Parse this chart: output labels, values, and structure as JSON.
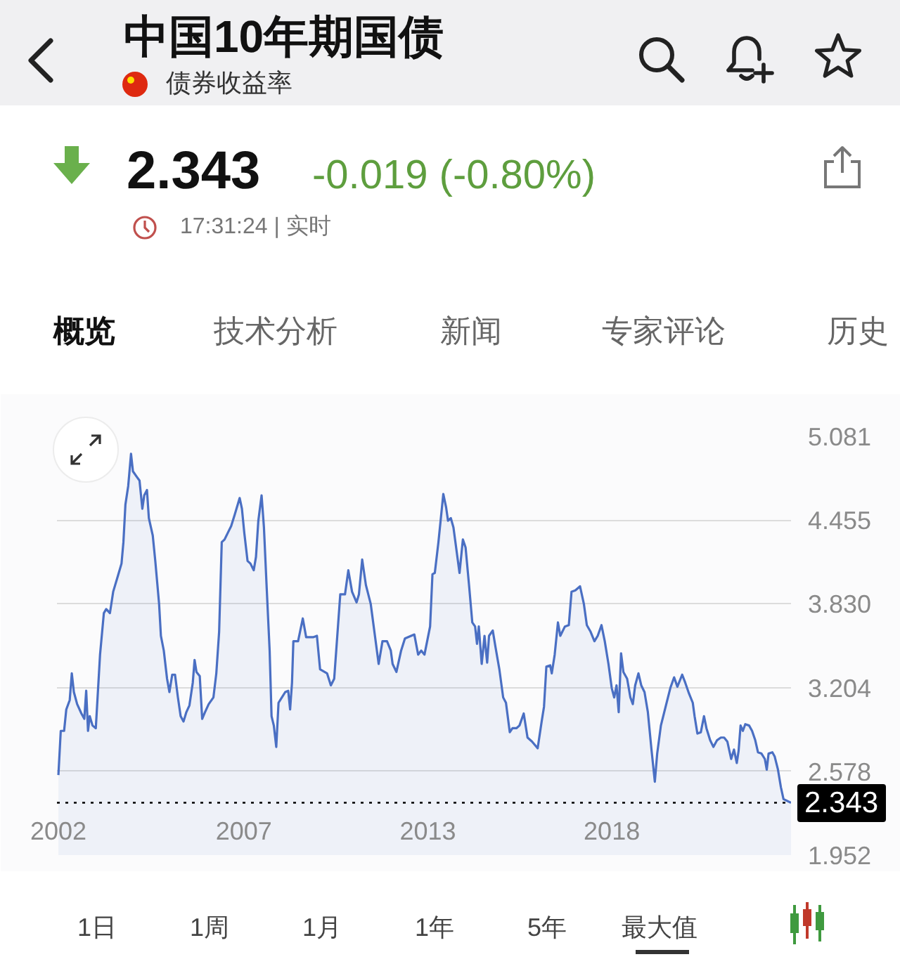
{
  "chart_data": {
    "type": "area",
    "title": "中国10年期国债",
    "subtitle": "债券收益率",
    "annotations": [
      "2.343",
      "-0.019 (-0.80%)",
      "17:31:24 | 实时",
      "概览",
      "技术分析",
      "新闻",
      "专家评论",
      "历史",
      "1日",
      "1周",
      "1月",
      "1年",
      "5年",
      "最大值"
    ],
    "x": [
      "2002-04-02",
      "2002-04-28",
      "2002-06-04",
      "2002-06-28",
      "2002-08-05",
      "2002-08-28",
      "2002-09-20",
      "2002-10-26",
      "2002-12-12",
      "2003-01-13",
      "2003-02-03",
      "2003-02-23",
      "2003-03-14",
      "2003-04-14",
      "2003-05-20",
      "2003-07-06",
      "2003-08-17",
      "2003-09-12",
      "2003-10-23",
      "2003-11-28",
      "2004-01-20",
      "2004-02-28",
      "2004-03-20",
      "2004-04-11",
      "2004-05-12",
      "2004-06-12",
      "2004-07-03",
      "2004-08-13",
      "2004-09-14",
      "2004-10-15",
      "2004-11-05",
      "2004-12-05",
      "2004-12-26",
      "2005-02-07",
      "2005-03-07",
      "2005-04-18",
      "2005-05-08",
      "2005-06-09",
      "2005-07-15",
      "2005-08-10",
      "2005-09-10",
      "2005-10-11",
      "2005-11-12",
      "2005-12-12",
      "2006-01-13",
      "2006-02-13",
      "2006-03-19",
      "2006-04-25",
      "2006-05-15",
      "2006-06-05",
      "2006-07-11",
      "2006-08-07",
      "2006-09-07",
      "2006-10-18",
      "2006-12-09",
      "2007-01-10",
      "2007-02-10",
      "2007-03-11",
      "2007-04-11",
      "2007-05-17",
      "2007-06-23",
      "2007-08-03",
      "2007-09-25",
      "2007-10-20",
      "2007-11-15",
      "2007-12-21",
      "2008-01-22",
      "2008-02-27",
      "2008-03-23",
      "2008-04-18",
      "2008-05-24",
      "2008-06-19",
      "2008-07-20",
      "2008-08-21",
      "2008-09-11",
      "2008-10-06",
      "2008-11-02",
      "2008-11-27",
      "2009-01-03",
      "2009-02-09",
      "2009-03-14",
      "2009-04-04",
      "2009-04-25",
      "2009-05-10",
      "2009-07-01",
      "2009-08-22",
      "2009-09-28",
      "2009-12-14",
      "2010-01-25",
      "2010-03-01",
      "2010-05-17",
      "2010-06-28",
      "2010-08-04",
      "2010-10-10",
      "2010-12-01",
      "2011-01-07",
      "2011-02-17",
      "2011-04-08",
      "2011-05-04",
      "2011-06-09",
      "2011-07-20",
      "2011-09-11",
      "2011-10-22",
      "2011-12-08",
      "2012-01-19",
      "2012-03-09",
      "2012-04-20",
      "2012-05-10",
      "2012-06-21",
      "2012-08-12",
      "2012-09-23",
      "2013-01-05",
      "2013-02-16",
      "2013-03-22",
      "2013-04-27",
      "2013-06-28",
      "2013-07-24",
      "2013-08-19",
      "2013-09-28",
      "2013-11-21",
      "2013-12-22",
      "2014-01-12",
      "2014-02-12",
      "2014-03-13",
      "2014-05-19",
      "2014-06-25",
      "2014-07-25",
      "2014-09-01",
      "2014-10-07",
      "2014-11-07",
      "2014-11-28",
      "2014-12-18",
      "2015-01-19",
      "2015-02-19",
      "2015-03-20",
      "2015-04-10",
      "2015-05-21",
      "2015-06-22",
      "2015-08-02",
      "2015-09-13",
      "2015-10-14",
      "2015-11-25",
      "2015-12-25",
      "2016-02-06",
      "2016-03-11",
      "2016-04-27",
      "2016-06-08",
      "2016-07-28",
      "2016-09-28",
      "2016-11-11",
      "2016-12-07",
      "2017-01-02",
      "2017-02-13",
      "2017-03-03",
      "2017-04-04",
      "2017-05-10",
      "2017-06-05",
      "2017-07-26",
      "2017-09-07",
      "2017-10-07",
      "2017-11-18",
      "2018-01-09",
      "2018-02-20",
      "2018-03-25",
      "2018-05-06",
      "2018-06-17",
      "2018-07-23",
      "2018-09-03",
      "2018-10-09",
      "2018-11-19",
      "2018-12-25",
      "2019-01-21",
      "2019-02-16",
      "2019-03-12",
      "2019-04-07",
      "2019-05-03",
      "2019-06-13",
      "2019-07-19",
      "2019-08-15",
      "2019-09-10",
      "2019-10-16",
      "2019-11-16",
      "2019-12-22",
      "2020-01-28",
      "2020-03-08",
      "2020-04-14",
      "2020-05-10",
      "2020-06-20",
      "2020-08-11",
      "2020-10-02",
      "2020-11-13",
      "2020-12-19",
      "2021-02-10",
      "2021-03-16",
      "2021-04-26",
      "2021-06-07",
      "2021-06-27",
      "2021-07-28",
      "2021-09-04",
      "2021-10-09",
      "2021-11-05",
      "2021-12-16",
      "2022-01-21",
      "2022-03-02",
      "2022-04-13",
      "2022-05-19",
      "2022-06-24",
      "2022-08-05",
      "2022-09-05",
      "2022-10-06",
      "2022-10-26",
      "2022-11-17",
      "2022-12-12",
      "2023-01-08",
      "2023-02-19",
      "2023-03-24",
      "2023-04-28",
      "2023-05-28",
      "2023-07-06",
      "2023-08-12",
      "2023-09-02",
      "2023-09-22",
      "2023-11-03",
      "2023-11-28",
      "2024-01-04",
      "2024-02-05",
      "2024-03-05",
      "2024-05-27"
    ],
    "series": [
      {
        "color": "#4a6fc3",
        "values": [
          2.55,
          2.88,
          2.88,
          3.04,
          3.11,
          3.31,
          3.17,
          3.08,
          3.01,
          2.97,
          3.18,
          2.88,
          2.99,
          2.92,
          2.9,
          3.45,
          3.76,
          3.79,
          3.76,
          3.92,
          4.04,
          4.13,
          4.29,
          4.57,
          4.71,
          4.95,
          4.82,
          4.78,
          4.75,
          4.54,
          4.64,
          4.68,
          4.47,
          4.34,
          4.15,
          3.83,
          3.59,
          3.48,
          3.27,
          3.17,
          3.3,
          3.3,
          3.13,
          2.99,
          2.95,
          3.02,
          3.07,
          3.24,
          3.41,
          3.32,
          3.29,
          2.97,
          3.02,
          3.08,
          3.13,
          3.31,
          3.62,
          4.29,
          4.31,
          4.36,
          4.41,
          4.5,
          4.62,
          4.54,
          4.36,
          4.15,
          4.13,
          4.08,
          4.18,
          4.45,
          4.64,
          4.4,
          3.94,
          3.48,
          2.99,
          2.92,
          2.76,
          3.09,
          3.13,
          3.17,
          3.18,
          3.04,
          3.24,
          3.55,
          3.55,
          3.72,
          3.58,
          3.58,
          3.59,
          3.34,
          3.31,
          3.22,
          3.27,
          3.9,
          3.9,
          4.08,
          3.92,
          3.84,
          3.9,
          4.16,
          3.97,
          3.83,
          3.62,
          3.38,
          3.55,
          3.55,
          3.48,
          3.38,
          3.32,
          3.48,
          3.57,
          3.6,
          3.45,
          3.48,
          3.45,
          3.66,
          4.05,
          4.06,
          4.29,
          4.65,
          4.55,
          4.45,
          4.47,
          4.4,
          4.06,
          4.31,
          4.25,
          3.97,
          3.69,
          3.66,
          3.53,
          3.66,
          3.38,
          3.59,
          3.39,
          3.59,
          3.63,
          3.5,
          3.34,
          3.13,
          3.09,
          2.87,
          2.9,
          2.9,
          2.92,
          3.01,
          2.83,
          2.8,
          2.75,
          2.95,
          3.06,
          3.36,
          3.37,
          3.31,
          3.45,
          3.69,
          3.59,
          3.66,
          3.67,
          3.92,
          3.93,
          3.96,
          3.83,
          3.67,
          3.62,
          3.55,
          3.59,
          3.67,
          3.55,
          3.38,
          3.2,
          3.13,
          3.22,
          3.02,
          3.46,
          3.32,
          3.27,
          3.13,
          3.08,
          3.22,
          3.31,
          3.22,
          3.17,
          3.02,
          2.74,
          2.5,
          2.71,
          2.92,
          3.06,
          3.2,
          3.28,
          3.21,
          3.3,
          3.24,
          3.16,
          3.09,
          2.99,
          2.86,
          2.87,
          2.99,
          2.9,
          2.81,
          2.76,
          2.81,
          2.83,
          2.83,
          2.8,
          2.67,
          2.74,
          2.64,
          2.73,
          2.92,
          2.88,
          2.93,
          2.92,
          2.88,
          2.81,
          2.72,
          2.71,
          2.67,
          2.59,
          2.71,
          2.72,
          2.69,
          2.59,
          2.46,
          2.37,
          2.343
        ]
      }
    ],
    "xlim": [
      "2002-03-17",
      "2024-05-27"
    ],
    "xticks": [
      {
        "value": "2002-04-02",
        "label": "2002"
      },
      {
        "value": "2007-11-10",
        "label": "2007"
      },
      {
        "value": "2013-06-04",
        "label": "2013"
      },
      {
        "value": "2018-12-26",
        "label": "2018"
      }
    ],
    "ylim": [
      1.952,
      5.081
    ],
    "yticks": [
      1.952,
      2.578,
      3.204,
      {
        "value": 3.83,
        "label": "3.830"
      },
      4.455,
      5.081
    ],
    "grid": "y",
    "ref_lines": [
      {
        "axis": "y",
        "value": 2.343,
        "label": "2.343",
        "color": "#000000",
        "line_style": "dotted"
      }
    ]
  }
}
